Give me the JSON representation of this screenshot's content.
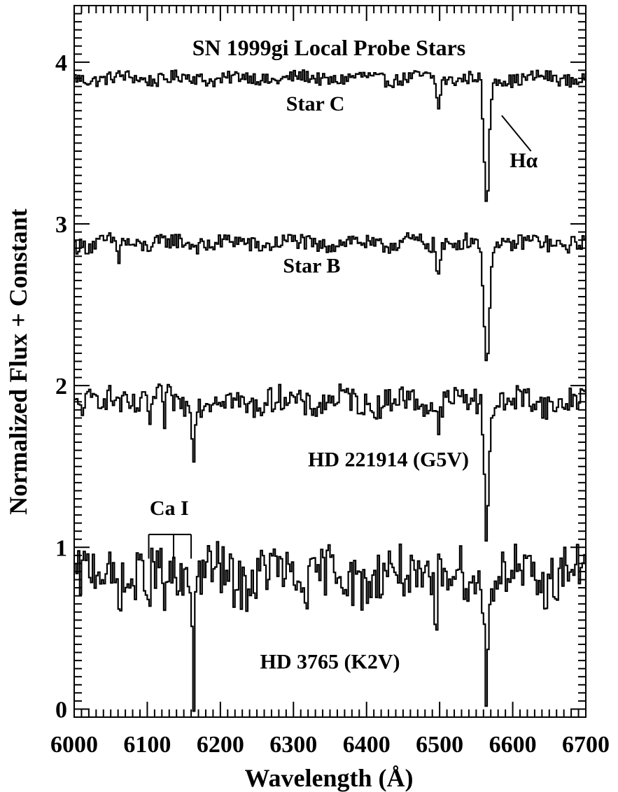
{
  "chart_data": {
    "type": "line",
    "title": "SN 1999gi Local Probe Stars",
    "xlabel": "Wavelength (Å)",
    "ylabel": "Normalized Flux + Constant",
    "xlim": [
      6000,
      6700
    ],
    "ylim": [
      -0.05,
      4.35
    ],
    "xticks": [
      6000,
      6100,
      6200,
      6300,
      6400,
      6500,
      6600,
      6700
    ],
    "xtick_labels": [
      "6000",
      "6100",
      "6200",
      "6300",
      "6400",
      "6500",
      "6600",
      "6700"
    ],
    "yticks": [
      0,
      1,
      2,
      3,
      4
    ],
    "ytick_labels": [
      "0",
      "1",
      "2",
      "3",
      "4"
    ],
    "grid": false,
    "series": [
      {
        "name": "Star C",
        "step": 2.5,
        "baseline": 3.9,
        "noise": 0.04,
        "lines": [
          {
            "x": 6497,
            "depth": 0.2,
            "width": 3
          },
          {
            "x": 6563,
            "depth": 0.8,
            "width": 5
          }
        ],
        "label_x": 6330,
        "label_y": 3.7
      },
      {
        "name": "Star B",
        "step": 2.5,
        "baseline": 2.88,
        "noise": 0.05,
        "lines": [
          {
            "x": 6059,
            "depth": 0.15,
            "width": 2
          },
          {
            "x": 6497,
            "depth": 0.2,
            "width": 3
          },
          {
            "x": 6563,
            "depth": 0.78,
            "width": 5
          }
        ],
        "label_x": 6325,
        "label_y": 2.7
      },
      {
        "name": "HD 221914 (G5V)",
        "step": 2.5,
        "baseline": 1.9,
        "noise": 0.08,
        "lines": [
          {
            "x": 6103,
            "depth": 0.15,
            "width": 2
          },
          {
            "x": 6122,
            "depth": 0.15,
            "width": 2
          },
          {
            "x": 6162,
            "depth": 0.32,
            "width": 2
          },
          {
            "x": 6497,
            "depth": 0.25,
            "width": 2
          },
          {
            "x": 6563,
            "depth": 0.8,
            "width": 4
          }
        ],
        "label_x": 6430,
        "label_y": 1.5
      },
      {
        "name": "HD 3765 (K2V)",
        "step": 2.5,
        "baseline": 0.82,
        "noise": 0.16,
        "lines": [
          {
            "x": 6102,
            "depth": 0.35,
            "width": 2
          },
          {
            "x": 6122,
            "depth": 0.25,
            "width": 2
          },
          {
            "x": 6162,
            "depth": 0.72,
            "width": 2
          },
          {
            "x": 6494,
            "depth": 0.42,
            "width": 2
          },
          {
            "x": 6563,
            "depth": 0.75,
            "width": 3
          }
        ],
        "label_x": 6350,
        "label_y": 0.25
      }
    ],
    "annotations": [
      {
        "text": "Hα",
        "x": 6615,
        "y": 3.35,
        "pointer_from": [
          6625,
          3.45
        ],
        "pointer_to": [
          6585,
          3.67
        ]
      },
      {
        "text": "Ca I",
        "x": 6130,
        "y": 1.2,
        "bracket_x": [
          6102,
          6136,
          6160
        ],
        "bracket_top": 1.08,
        "bracket_bottom": 0.93
      }
    ]
  }
}
